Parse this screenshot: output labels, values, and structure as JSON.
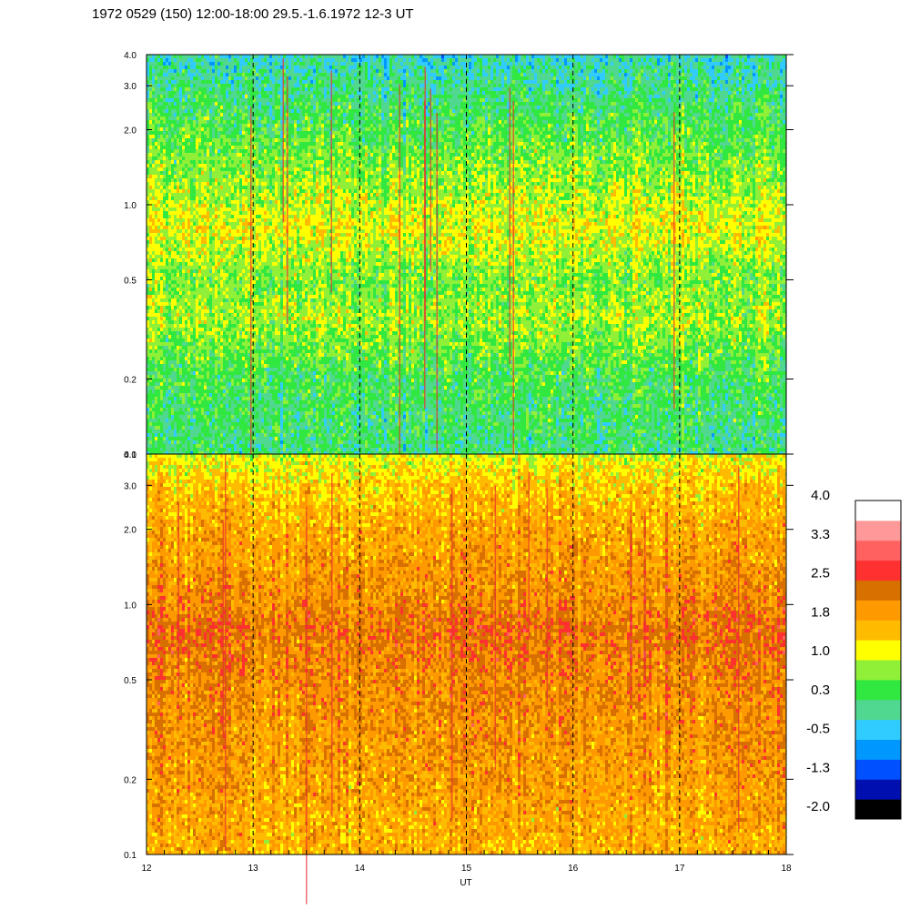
{
  "chart_data": {
    "type": "heatmap",
    "title": "1972 0529 (150) 12:00-18:00 29.5.-1.6.1972  12-3 UT",
    "xlabel": "UT",
    "x_ticks": [
      "12",
      "13",
      "14",
      "15",
      "16",
      "17",
      "18"
    ],
    "xlim": [
      12,
      18
    ],
    "dashed_hour_lines": [
      13,
      14,
      15,
      16,
      17
    ],
    "panels": [
      {
        "ylim": [
          0.1,
          4.0
        ],
        "y_scale": "log",
        "y_ticks": [
          "0.1",
          "0.2",
          "0.5",
          "1.0",
          "2.0",
          "3.0",
          "4.0"
        ],
        "color_profile": [
          {
            "y": 0.1,
            "value": 0.2
          },
          {
            "y": 0.2,
            "value": 0.4
          },
          {
            "y": 0.35,
            "value": 0.9
          },
          {
            "y": 0.5,
            "value": 0.7
          },
          {
            "y": 0.8,
            "value": 1.2
          },
          {
            "y": 1.0,
            "value": 1.0
          },
          {
            "y": 2.0,
            "value": 0.5
          },
          {
            "y": 4.0,
            "value": -0.1
          }
        ]
      },
      {
        "ylim": [
          0.1,
          4.0
        ],
        "y_scale": "log",
        "y_ticks": [
          "0.1",
          "0.2",
          "0.5",
          "1.0",
          "2.0",
          "3.0",
          "4.0"
        ],
        "color_profile": [
          {
            "y": 0.1,
            "value": 1.7
          },
          {
            "y": 0.2,
            "value": 1.9
          },
          {
            "y": 0.5,
            "value": 2.1
          },
          {
            "y": 0.8,
            "value": 2.3
          },
          {
            "y": 1.0,
            "value": 2.1
          },
          {
            "y": 2.0,
            "value": 1.8
          },
          {
            "y": 3.0,
            "value": 1.5
          },
          {
            "y": 4.0,
            "value": 1.1
          }
        ]
      }
    ],
    "colorbar": {
      "tick_labels": [
        "4.0",
        "3.3",
        "2.5",
        "1.8",
        "1.0",
        "0.3",
        "-0.5",
        "-1.3",
        "-2.0"
      ],
      "range": [
        -2.0,
        4.0
      ],
      "colors": [
        "#000000",
        "#0010b0",
        "#0050ff",
        "#0098ff",
        "#30ccff",
        "#50d890",
        "#30e840",
        "#90f038",
        "#ffff00",
        "#ffbb00",
        "#ff9900",
        "#d87000",
        "#ff3030",
        "#ff6060",
        "#ff9898",
        "#ffffff"
      ]
    }
  }
}
